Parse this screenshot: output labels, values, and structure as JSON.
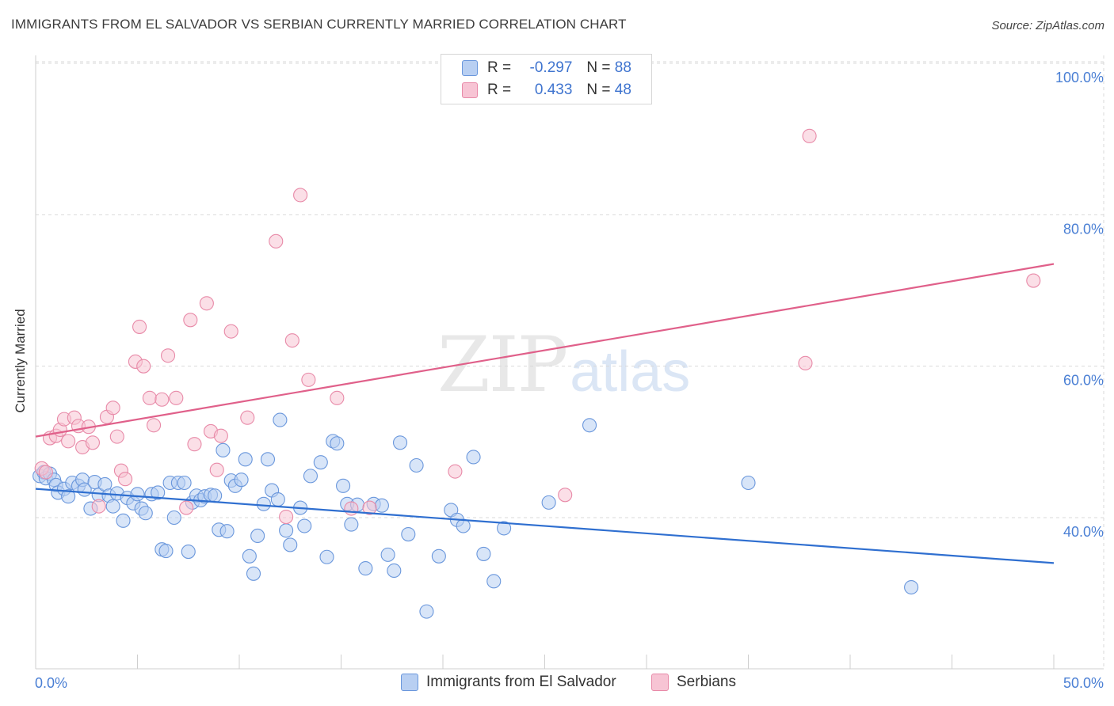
{
  "title": "IMMIGRANTS FROM EL SALVADOR VS SERBIAN CURRENTLY MARRIED CORRELATION CHART",
  "source": "Source: ZipAtlas.com",
  "watermark": {
    "zip": "ZIP",
    "atlas": "atlas"
  },
  "legend": {
    "rows": [
      {
        "r_label": "R =",
        "r_value": "-0.297",
        "n_label": "N =",
        "n_value": "88"
      },
      {
        "r_label": "R =",
        "r_value": "0.433",
        "n_label": "N =",
        "n_value": "48"
      }
    ]
  },
  "bottom_legend": [
    "Immigrants from El Salvador",
    "Serbians"
  ],
  "colors": {
    "blue_fill": "#b8cff2",
    "blue_stroke": "#6a97dc",
    "blue_line": "#2f6fd0",
    "pink_fill": "#f7c4d4",
    "pink_stroke": "#e88aa8",
    "pink_line": "#e0608a",
    "tick_text": "#4a7fd4",
    "grid": "#d9d9d9"
  },
  "chart_data": {
    "type": "scatter",
    "title": "IMMIGRANTS FROM EL SALVADOR VS SERBIAN CURRENTLY MARRIED CORRELATION CHART",
    "xlabel": "",
    "ylabel": "Currently Married",
    "xlim": [
      0,
      50
    ],
    "ylim": [
      20,
      102
    ],
    "x_tick_labels": [
      "0.0%",
      "50.0%"
    ],
    "y_ticks": [
      40,
      60,
      80,
      100
    ],
    "y_tick_labels": [
      "40.0%",
      "60.0%",
      "80.0%",
      "100.0%"
    ],
    "grid": true,
    "series": [
      {
        "name": "Immigrants from El Salvador",
        "color": "#6a97dc",
        "trend": {
          "x": [
            0,
            50
          ],
          "y": [
            43.8,
            34.0
          ]
        },
        "points": [
          [
            0.2,
            45.5
          ],
          [
            0.4,
            46.0
          ],
          [
            0.5,
            45.2
          ],
          [
            0.7,
            45.8
          ],
          [
            0.9,
            45.0
          ],
          [
            1.0,
            44.3
          ],
          [
            1.1,
            43.3
          ],
          [
            1.4,
            43.8
          ],
          [
            1.6,
            42.8
          ],
          [
            1.8,
            44.6
          ],
          [
            2.1,
            44.2
          ],
          [
            2.3,
            45.0
          ],
          [
            2.4,
            43.7
          ],
          [
            2.7,
            41.2
          ],
          [
            2.9,
            44.7
          ],
          [
            3.1,
            43.0
          ],
          [
            3.4,
            44.4
          ],
          [
            3.6,
            42.9
          ],
          [
            3.8,
            41.5
          ],
          [
            4.0,
            43.2
          ],
          [
            4.3,
            39.6
          ],
          [
            4.5,
            42.6
          ],
          [
            4.8,
            41.9
          ],
          [
            5.0,
            43.1
          ],
          [
            5.2,
            41.2
          ],
          [
            5.4,
            40.6
          ],
          [
            5.7,
            43.1
          ],
          [
            6.0,
            43.3
          ],
          [
            6.2,
            35.8
          ],
          [
            6.4,
            35.6
          ],
          [
            6.6,
            44.6
          ],
          [
            6.8,
            40.0
          ],
          [
            7.0,
            44.6
          ],
          [
            7.3,
            44.6
          ],
          [
            7.5,
            35.5
          ],
          [
            7.7,
            42.0
          ],
          [
            7.9,
            42.9
          ],
          [
            8.1,
            42.3
          ],
          [
            8.3,
            42.8
          ],
          [
            8.6,
            43.0
          ],
          [
            8.8,
            42.9
          ],
          [
            9.0,
            38.4
          ],
          [
            9.2,
            48.9
          ],
          [
            9.4,
            38.2
          ],
          [
            9.6,
            44.9
          ],
          [
            9.8,
            44.2
          ],
          [
            10.1,
            45.0
          ],
          [
            10.3,
            47.7
          ],
          [
            10.5,
            34.9
          ],
          [
            10.7,
            32.6
          ],
          [
            10.9,
            37.6
          ],
          [
            11.2,
            41.8
          ],
          [
            11.4,
            47.7
          ],
          [
            11.6,
            43.6
          ],
          [
            11.9,
            42.4
          ],
          [
            12.0,
            52.9
          ],
          [
            12.3,
            38.3
          ],
          [
            12.5,
            36.4
          ],
          [
            13.0,
            41.3
          ],
          [
            13.2,
            38.9
          ],
          [
            13.5,
            45.5
          ],
          [
            14.0,
            47.3
          ],
          [
            14.3,
            34.8
          ],
          [
            14.6,
            50.1
          ],
          [
            14.8,
            49.8
          ],
          [
            15.1,
            44.2
          ],
          [
            15.3,
            41.8
          ],
          [
            15.5,
            39.1
          ],
          [
            15.8,
            41.7
          ],
          [
            16.2,
            33.3
          ],
          [
            16.6,
            41.8
          ],
          [
            17.0,
            41.6
          ],
          [
            17.3,
            35.1
          ],
          [
            17.6,
            33.0
          ],
          [
            17.9,
            49.9
          ],
          [
            18.3,
            37.8
          ],
          [
            18.7,
            46.9
          ],
          [
            19.2,
            27.6
          ],
          [
            19.8,
            34.9
          ],
          [
            20.4,
            41.0
          ],
          [
            20.7,
            39.7
          ],
          [
            21.0,
            38.9
          ],
          [
            21.5,
            48.0
          ],
          [
            22.0,
            35.2
          ],
          [
            22.5,
            31.6
          ],
          [
            23.0,
            38.6
          ],
          [
            25.2,
            42.0
          ],
          [
            27.2,
            52.2
          ],
          [
            35.0,
            44.6
          ],
          [
            43.0,
            30.8
          ]
        ]
      },
      {
        "name": "Serbians",
        "color": "#e88aa8",
        "trend": {
          "x": [
            0,
            50
          ],
          "y": [
            50.7,
            73.5
          ]
        },
        "points": [
          [
            0.3,
            46.5
          ],
          [
            0.5,
            46.0
          ],
          [
            0.7,
            50.5
          ],
          [
            1.0,
            50.8
          ],
          [
            1.2,
            51.6
          ],
          [
            1.4,
            53.0
          ],
          [
            1.6,
            50.1
          ],
          [
            1.9,
            53.2
          ],
          [
            2.1,
            52.1
          ],
          [
            2.3,
            49.3
          ],
          [
            2.6,
            52.0
          ],
          [
            2.8,
            49.9
          ],
          [
            3.1,
            41.5
          ],
          [
            3.5,
            53.3
          ],
          [
            3.8,
            54.5
          ],
          [
            4.0,
            50.7
          ],
          [
            4.2,
            46.2
          ],
          [
            4.4,
            45.1
          ],
          [
            4.9,
            60.6
          ],
          [
            5.1,
            65.2
          ],
          [
            5.3,
            60.0
          ],
          [
            5.6,
            55.8
          ],
          [
            5.8,
            52.2
          ],
          [
            6.2,
            55.6
          ],
          [
            6.5,
            61.4
          ],
          [
            6.9,
            55.8
          ],
          [
            7.4,
            41.3
          ],
          [
            7.6,
            66.1
          ],
          [
            7.8,
            49.7
          ],
          [
            8.4,
            68.3
          ],
          [
            8.6,
            51.4
          ],
          [
            8.9,
            46.3
          ],
          [
            9.1,
            50.8
          ],
          [
            9.6,
            64.6
          ],
          [
            10.4,
            53.2
          ],
          [
            11.8,
            76.5
          ],
          [
            12.3,
            40.1
          ],
          [
            12.6,
            63.4
          ],
          [
            13.0,
            82.6
          ],
          [
            13.4,
            58.2
          ],
          [
            14.8,
            55.8
          ],
          [
            15.5,
            41.2
          ],
          [
            16.4,
            41.3
          ],
          [
            20.6,
            46.1
          ],
          [
            26.0,
            43.0
          ],
          [
            37.8,
            60.4
          ],
          [
            38.0,
            90.4
          ],
          [
            49.0,
            71.3
          ]
        ]
      }
    ]
  }
}
